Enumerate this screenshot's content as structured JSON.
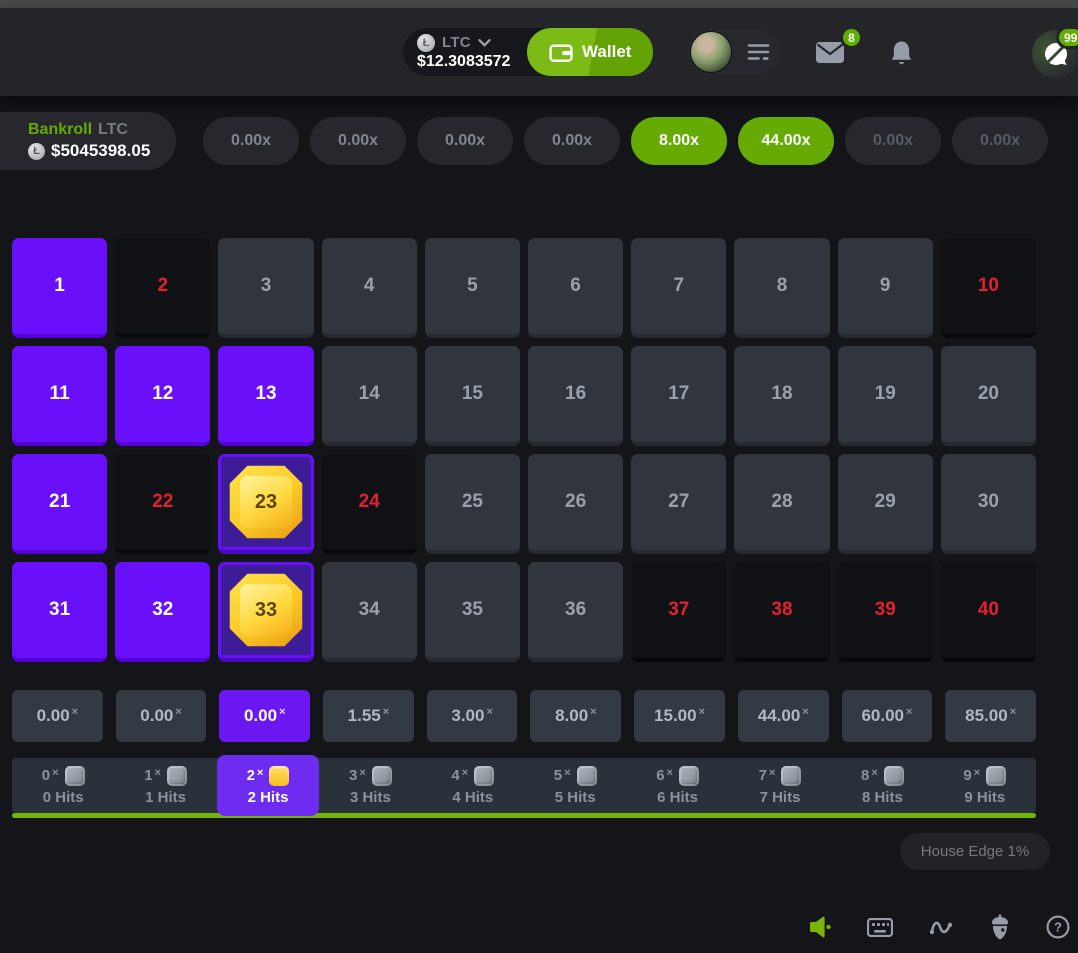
{
  "colors": {
    "accent_purple": "#690ffa",
    "accent_green": "#65ab04",
    "miss_red": "#e3212e",
    "gem_gold": "#ffd23b"
  },
  "header": {
    "coin_symbol": "Ł",
    "currency_code": "LTC",
    "currency_balance": "$12.3083572",
    "wallet_label": "Wallet",
    "messages_badge": "8",
    "chat_badge": "99"
  },
  "bankroll": {
    "label": "Bankroll",
    "currency": "LTC",
    "coin_symbol": "Ł",
    "amount": "$5045398.05"
  },
  "recent_results": [
    {
      "value": "0.00x",
      "state": "idle"
    },
    {
      "value": "0.00x",
      "state": "idle"
    },
    {
      "value": "0.00x",
      "state": "idle"
    },
    {
      "value": "0.00x",
      "state": "idle"
    },
    {
      "value": "8.00x",
      "state": "win"
    },
    {
      "value": "44.00x",
      "state": "win"
    },
    {
      "value": "0.00x",
      "state": "dim"
    },
    {
      "value": "0.00x",
      "state": "dim"
    }
  ],
  "keno_grid": {
    "rows": 4,
    "cols": 10,
    "cells": [
      {
        "n": "1",
        "state": "selected"
      },
      {
        "n": "2",
        "state": "miss"
      },
      {
        "n": "3",
        "state": "idle"
      },
      {
        "n": "4",
        "state": "idle"
      },
      {
        "n": "5",
        "state": "idle"
      },
      {
        "n": "6",
        "state": "idle"
      },
      {
        "n": "7",
        "state": "idle"
      },
      {
        "n": "8",
        "state": "idle"
      },
      {
        "n": "9",
        "state": "idle"
      },
      {
        "n": "10",
        "state": "miss"
      },
      {
        "n": "11",
        "state": "selected"
      },
      {
        "n": "12",
        "state": "selected"
      },
      {
        "n": "13",
        "state": "selected"
      },
      {
        "n": "14",
        "state": "idle"
      },
      {
        "n": "15",
        "state": "idle"
      },
      {
        "n": "16",
        "state": "idle"
      },
      {
        "n": "17",
        "state": "idle"
      },
      {
        "n": "18",
        "state": "idle"
      },
      {
        "n": "19",
        "state": "idle"
      },
      {
        "n": "20",
        "state": "idle"
      },
      {
        "n": "21",
        "state": "selected"
      },
      {
        "n": "22",
        "state": "miss"
      },
      {
        "n": "23",
        "state": "hit"
      },
      {
        "n": "24",
        "state": "miss"
      },
      {
        "n": "25",
        "state": "idle"
      },
      {
        "n": "26",
        "state": "idle"
      },
      {
        "n": "27",
        "state": "idle"
      },
      {
        "n": "28",
        "state": "idle"
      },
      {
        "n": "29",
        "state": "idle"
      },
      {
        "n": "30",
        "state": "idle"
      },
      {
        "n": "31",
        "state": "selected"
      },
      {
        "n": "32",
        "state": "selected"
      },
      {
        "n": "33",
        "state": "hit"
      },
      {
        "n": "34",
        "state": "idle"
      },
      {
        "n": "35",
        "state": "idle"
      },
      {
        "n": "36",
        "state": "idle"
      },
      {
        "n": "37",
        "state": "miss"
      },
      {
        "n": "38",
        "state": "miss"
      },
      {
        "n": "39",
        "state": "miss"
      },
      {
        "n": "40",
        "state": "miss"
      }
    ]
  },
  "payout_row": {
    "active_index": 2,
    "items": [
      {
        "value": "0.00"
      },
      {
        "value": "0.00"
      },
      {
        "value": "0.00"
      },
      {
        "value": "1.55"
      },
      {
        "value": "3.00"
      },
      {
        "value": "8.00"
      },
      {
        "value": "15.00"
      },
      {
        "value": "44.00"
      },
      {
        "value": "60.00"
      },
      {
        "value": "85.00"
      }
    ]
  },
  "hits_row": {
    "active_index": 2,
    "items": [
      {
        "mult": "0",
        "hits": "0 Hits"
      },
      {
        "mult": "1",
        "hits": "1 Hits"
      },
      {
        "mult": "2",
        "hits": "2 Hits"
      },
      {
        "mult": "3",
        "hits": "3 Hits"
      },
      {
        "mult": "4",
        "hits": "4 Hits"
      },
      {
        "mult": "5",
        "hits": "5 Hits"
      },
      {
        "mult": "6",
        "hits": "6 Hits"
      },
      {
        "mult": "7",
        "hits": "7 Hits"
      },
      {
        "mult": "8",
        "hits": "8 Hits"
      },
      {
        "mult": "9",
        "hits": "9 Hits"
      }
    ]
  },
  "house_edge_label": "House Edge 1%",
  "footer": {
    "icons": [
      {
        "name": "sound-icon",
        "active": true
      },
      {
        "name": "keyboard-icon",
        "active": false
      },
      {
        "name": "live-stats-icon",
        "active": false
      },
      {
        "name": "fairness-icon",
        "active": false
      },
      {
        "name": "help-icon",
        "active": false
      }
    ]
  }
}
